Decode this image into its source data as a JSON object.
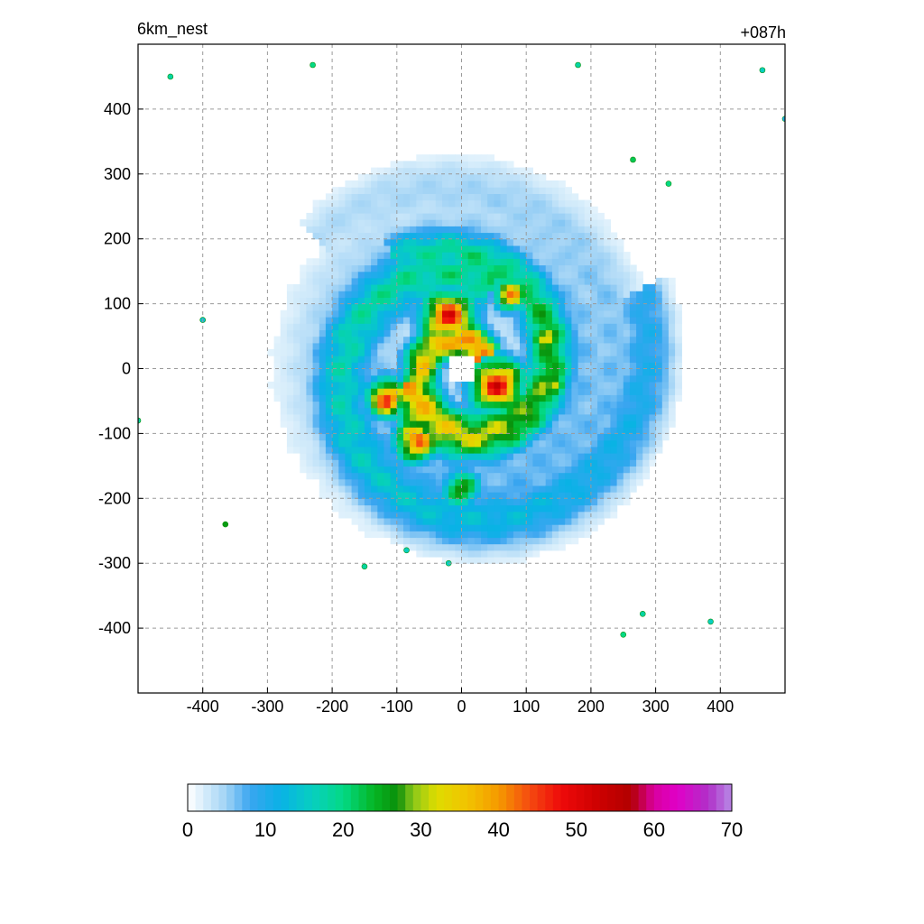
{
  "header": {
    "title_left": "6km_nest",
    "title_right": "+087h"
  },
  "chart_data": {
    "type": "heatmap",
    "title": "6km_nest",
    "subtitle": "+087h",
    "xlabel": "",
    "ylabel": "",
    "xlim": [
      -500,
      500
    ],
    "ylim": [
      -500,
      500
    ],
    "x_ticks": [
      -400,
      -300,
      -200,
      -100,
      0,
      100,
      200,
      300,
      400
    ],
    "y_ticks": [
      -400,
      -300,
      -200,
      -100,
      0,
      100,
      200,
      300,
      400
    ],
    "grid": true,
    "colorbar": {
      "min": 0,
      "max": 70,
      "ticks": [
        0,
        10,
        20,
        30,
        40,
        50,
        60,
        70
      ],
      "bins": 70,
      "orientation": "horizontal",
      "stops": [
        {
          "v": 0,
          "c": "#ffffff"
        },
        {
          "v": 2,
          "c": "#d9eefb"
        },
        {
          "v": 5,
          "c": "#9fd2f5"
        },
        {
          "v": 8,
          "c": "#3aa5f0"
        },
        {
          "v": 12,
          "c": "#09b2e6"
        },
        {
          "v": 16,
          "c": "#07cfc0"
        },
        {
          "v": 20,
          "c": "#03d985"
        },
        {
          "v": 24,
          "c": "#05b523"
        },
        {
          "v": 27,
          "c": "#0a8f0a"
        },
        {
          "v": 29,
          "c": "#8ac81a"
        },
        {
          "v": 32,
          "c": "#dfdc00"
        },
        {
          "v": 36,
          "c": "#f2c300"
        },
        {
          "v": 40,
          "c": "#f59a00"
        },
        {
          "v": 44,
          "c": "#f54a10"
        },
        {
          "v": 48,
          "c": "#ee0a0a"
        },
        {
          "v": 53,
          "c": "#cc0000"
        },
        {
          "v": 57,
          "c": "#b20000"
        },
        {
          "v": 60,
          "c": "#d9009f"
        },
        {
          "v": 63,
          "c": "#e000c8"
        },
        {
          "v": 67,
          "c": "#b030c8"
        },
        {
          "v": 70,
          "c": "#b78ae6"
        }
      ]
    },
    "field": {
      "center_x": 0,
      "center_y": 0,
      "eye_radius": 22,
      "rainbands": [
        {
          "r0": 35,
          "growth": 0.22,
          "angle_start": 0.5,
          "angle_span": 6.2,
          "width": 22,
          "peak": 52
        },
        {
          "r0": 80,
          "growth": 0.18,
          "angle_start": 3.4,
          "angle_span": 5.0,
          "width": 28,
          "peak": 44
        },
        {
          "r0": 140,
          "growth": 0.14,
          "angle_start": 1.2,
          "angle_span": 5.5,
          "width": 34,
          "peak": 24
        },
        {
          "r0": 190,
          "growth": 0.1,
          "angle_start": 4.2,
          "angle_span": 4.5,
          "width": 40,
          "peak": 10
        }
      ],
      "hotspots": [
        {
          "x": -20,
          "y": 80,
          "r": 30,
          "v": 54
        },
        {
          "x": 55,
          "y": -25,
          "r": 30,
          "v": 55
        },
        {
          "x": -115,
          "y": -45,
          "r": 22,
          "v": 52
        },
        {
          "x": -70,
          "y": -110,
          "r": 24,
          "v": 50
        },
        {
          "x": 75,
          "y": 115,
          "r": 18,
          "v": 46
        },
        {
          "x": 130,
          "y": 50,
          "r": 18,
          "v": 42
        },
        {
          "x": 145,
          "y": -25,
          "r": 14,
          "v": 40
        },
        {
          "x": 0,
          "y": -185,
          "r": 22,
          "v": 32
        }
      ],
      "isolated_cells": [
        {
          "x": -365,
          "y": -240,
          "v": 26
        },
        {
          "x": 265,
          "y": 322,
          "v": 22
        },
        {
          "x": 320,
          "y": 285,
          "v": 20
        },
        {
          "x": -230,
          "y": 468,
          "v": 20
        },
        {
          "x": 180,
          "y": 468,
          "v": 18
        },
        {
          "x": -450,
          "y": 450,
          "v": 18
        },
        {
          "x": 250,
          "y": -410,
          "v": 20
        },
        {
          "x": 280,
          "y": -378,
          "v": 18
        },
        {
          "x": -150,
          "y": -305,
          "v": 18
        },
        {
          "x": -85,
          "y": -280,
          "v": 16
        },
        {
          "x": -20,
          "y": -300,
          "v": 16
        },
        {
          "x": 385,
          "y": -390,
          "v": 16
        },
        {
          "x": 465,
          "y": 460,
          "v": 16
        },
        {
          "x": -500,
          "y": -80,
          "v": 18
        },
        {
          "x": -400,
          "y": 75,
          "v": 14
        },
        {
          "x": 500,
          "y": 385,
          "v": 10
        }
      ]
    }
  }
}
